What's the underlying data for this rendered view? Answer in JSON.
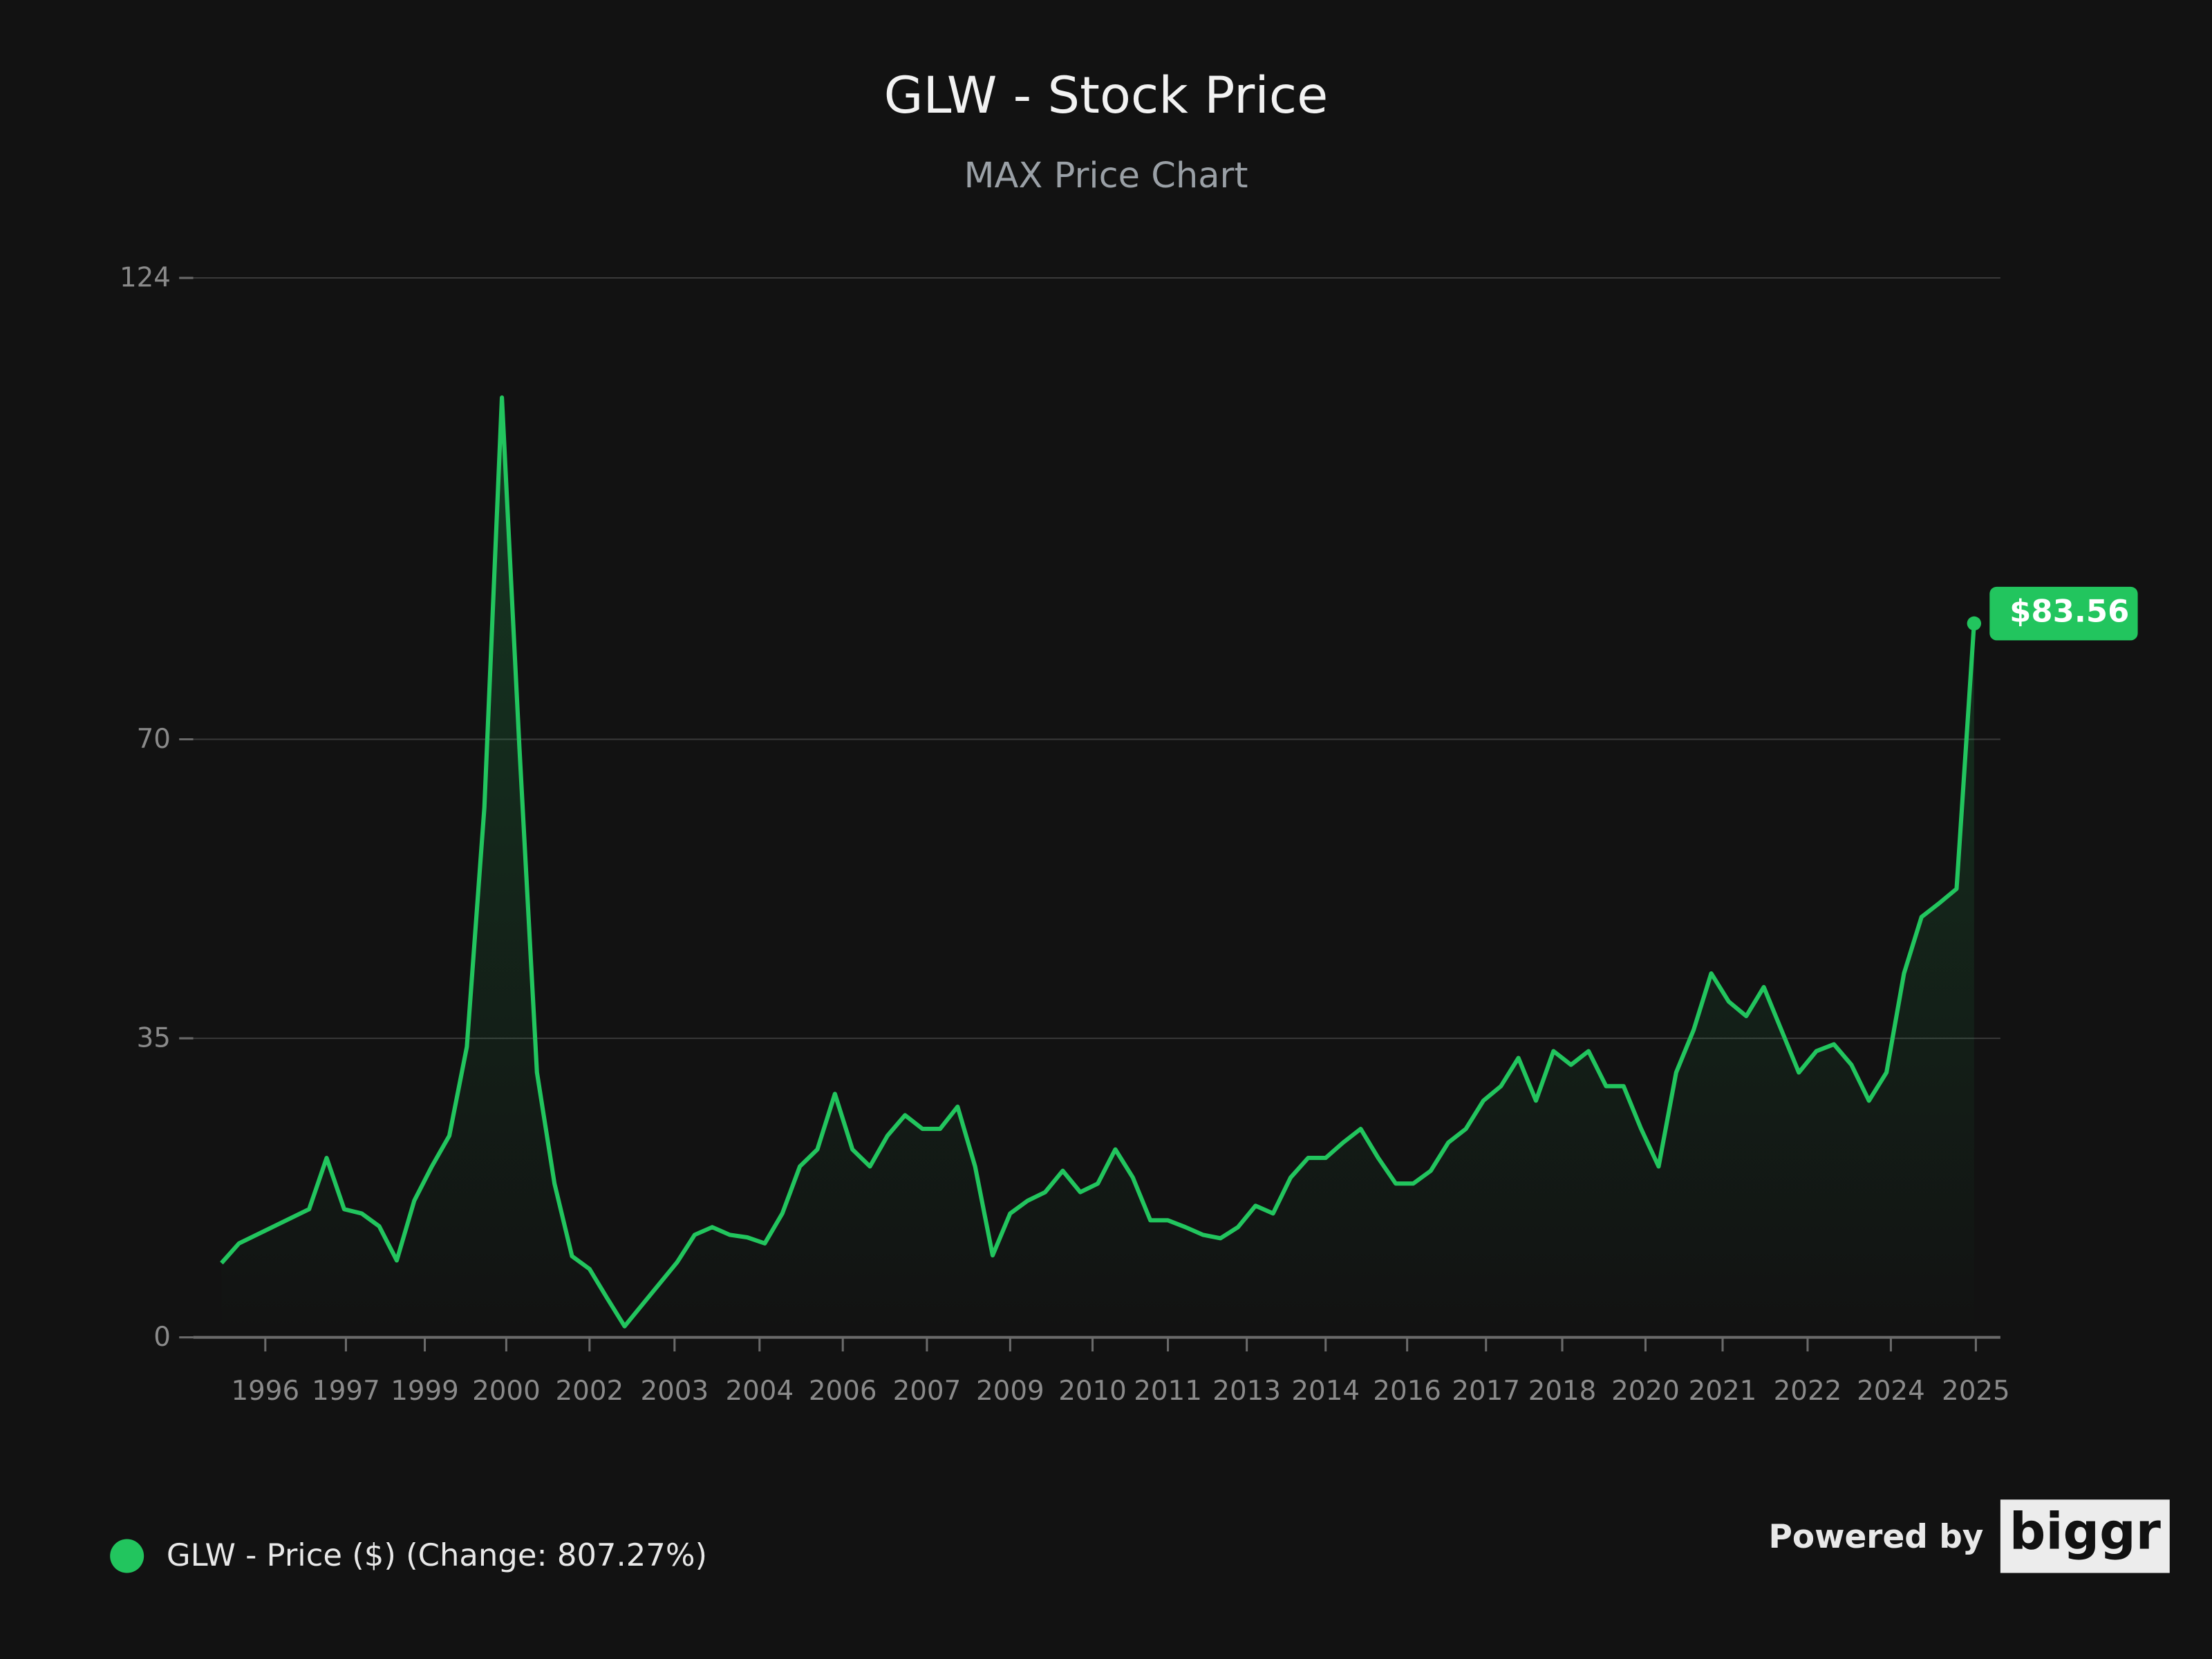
{
  "chart_data": {
    "type": "line",
    "title": "GLW - Stock Price",
    "subtitle": "MAX Price Chart",
    "x": [
      0,
      2,
      4,
      6,
      8,
      10,
      12,
      14,
      16,
      18,
      20,
      22,
      24,
      26,
      28,
      30,
      32,
      34,
      36,
      38,
      40,
      42,
      44,
      46,
      48,
      50,
      52,
      54,
      56,
      58,
      60,
      62,
      64,
      66,
      68,
      70,
      72,
      74,
      76,
      78,
      80,
      82,
      84,
      86,
      88,
      90,
      92,
      94,
      96,
      98,
      100,
      102,
      104,
      106,
      108,
      110,
      112,
      114,
      116,
      118,
      120,
      122,
      124,
      126,
      128,
      130,
      132,
      134,
      136,
      138,
      140,
      142,
      144,
      146,
      148,
      150,
      152,
      154,
      156,
      158,
      160,
      162,
      164,
      166,
      168,
      170,
      172,
      174,
      176,
      178,
      180,
      182,
      184,
      186,
      188,
      190,
      192,
      194,
      196,
      198,
      200
    ],
    "series": [
      {
        "name": "GLW - Price ($) (Change: 807.27%)",
        "color": "#22c55e",
        "values": [
          8.7,
          11,
          12,
          13,
          14,
          15,
          21,
          15,
          14.5,
          13,
          9,
          16,
          20,
          23.6,
          34,
          62,
          110,
          69,
          31,
          18,
          9.5,
          8,
          4.6,
          1.3,
          3.8,
          6.3,
          8.8,
          12,
          12.9,
          12,
          11.7,
          11,
          14.5,
          20,
          22,
          28.5,
          22,
          20,
          23.6,
          26,
          24.4,
          24.4,
          27,
          20,
          9.6,
          14.5,
          16,
          17,
          19.5,
          17,
          18,
          22,
          18.7,
          13.7,
          13.7,
          12.9,
          12,
          11.6,
          12.9,
          15.4,
          14.5,
          18.7,
          21,
          21,
          22.8,
          24.4,
          21,
          18,
          18,
          19.5,
          22.8,
          24.4,
          27.7,
          29.4,
          32.7,
          27.7,
          33.5,
          31.9,
          33.5,
          29.4,
          29.4,
          24.4,
          20,
          31,
          36,
          42.6,
          39.3,
          37.6,
          41,
          36,
          31,
          33.5,
          34.3,
          31.9,
          27.7,
          31,
          42.6,
          49.2,
          50.8,
          52.5,
          83.56
        ],
        "value_labels": [
          null,
          null,
          null,
          null,
          null,
          null,
          null,
          null,
          null,
          null,
          null,
          null,
          null,
          null,
          null,
          null,
          null,
          null,
          null,
          null,
          null,
          null,
          null,
          null,
          null,
          null,
          null,
          null,
          null,
          null,
          null,
          null,
          null,
          null,
          null,
          null,
          null,
          null,
          null,
          null,
          null,
          null,
          null,
          null,
          null,
          null,
          null,
          null,
          null,
          null,
          null,
          null,
          null,
          null,
          null,
          null,
          null,
          null,
          null,
          null,
          null,
          null,
          null,
          null,
          null,
          null,
          null,
          null,
          null,
          null,
          null,
          null,
          null,
          null,
          null,
          null,
          null,
          null,
          null,
          null,
          null,
          null,
          null,
          null,
          null,
          null,
          null,
          null,
          null,
          null,
          null,
          null,
          null,
          null,
          null,
          null,
          null,
          null,
          null,
          null,
          "$83.56"
        ]
      }
    ],
    "xlim": [
      0,
      203
    ],
    "xticks": [
      {
        "value": 5,
        "label": "1996"
      },
      {
        "value": 14.2,
        "label": "1997"
      },
      {
        "value": 23.2,
        "label": "1999"
      },
      {
        "value": 32.5,
        "label": "2000"
      },
      {
        "value": 42,
        "label": "2002"
      },
      {
        "value": 51.7,
        "label": "2003"
      },
      {
        "value": 61.4,
        "label": "2004"
      },
      {
        "value": 70.9,
        "label": "2006"
      },
      {
        "value": 80.5,
        "label": "2007"
      },
      {
        "value": 90,
        "label": "2009"
      },
      {
        "value": 99.4,
        "label": "2010"
      },
      {
        "value": 108,
        "label": "2011"
      },
      {
        "value": 117,
        "label": "2013"
      },
      {
        "value": 126,
        "label": "2014"
      },
      {
        "value": 135.3,
        "label": "2016"
      },
      {
        "value": 144.3,
        "label": "2017"
      },
      {
        "value": 153,
        "label": "2018"
      },
      {
        "value": 162.5,
        "label": "2020"
      },
      {
        "value": 171.3,
        "label": "2021"
      },
      {
        "value": 181,
        "label": "2022"
      },
      {
        "value": 190.5,
        "label": "2024"
      },
      {
        "value": 200.2,
        "label": "2025"
      }
    ],
    "ylim": [
      0,
      124
    ],
    "yticks": [
      0,
      35,
      70,
      124
    ],
    "grid": true,
    "footer": {
      "powered_by": "Powered by",
      "logo": "biggr"
    }
  }
}
